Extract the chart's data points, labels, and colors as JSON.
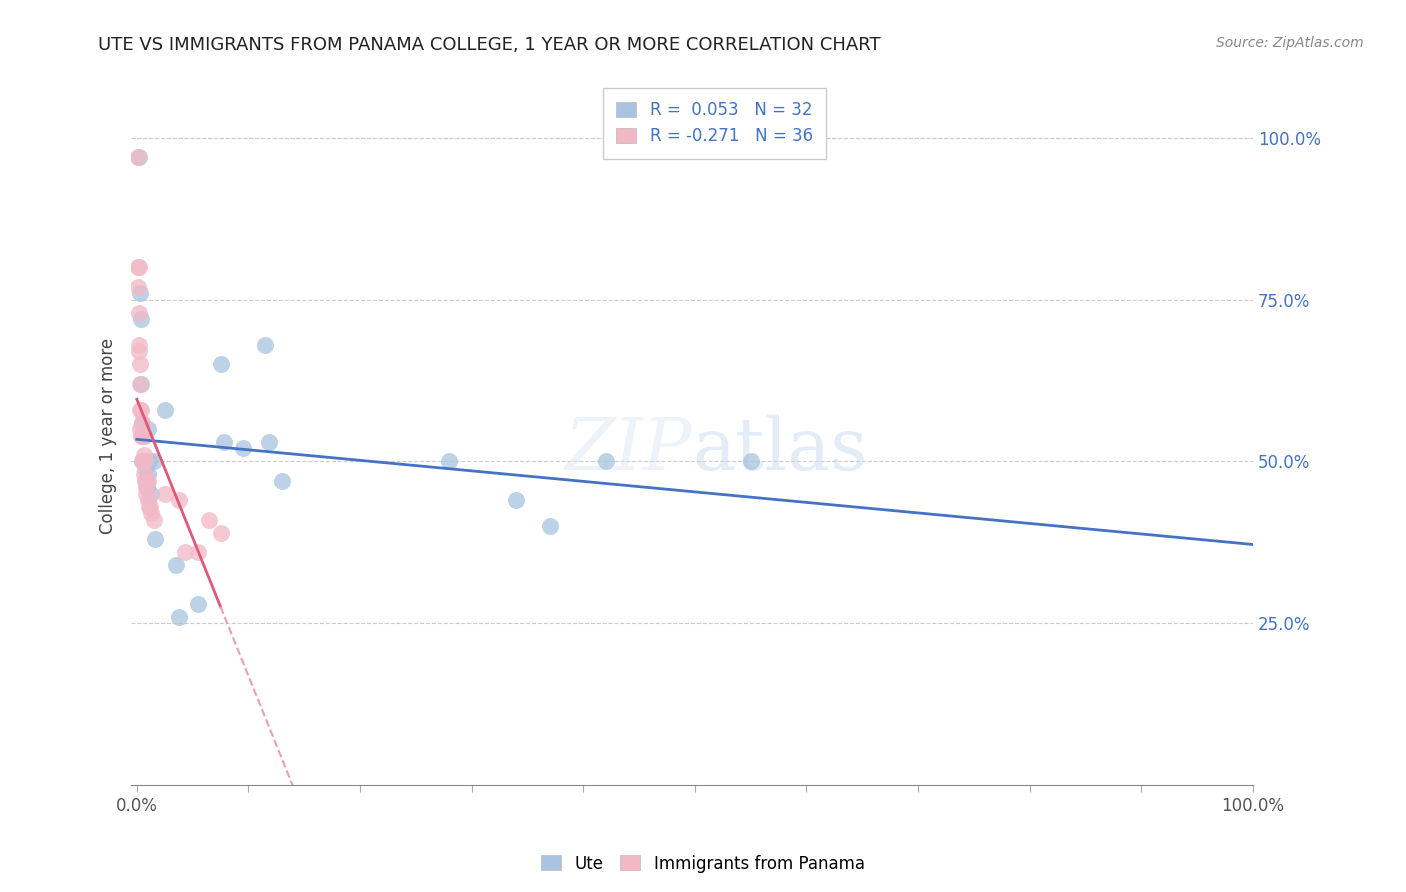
{
  "title": "UTE VS IMMIGRANTS FROM PANAMA COLLEGE, 1 YEAR OR MORE CORRELATION CHART",
  "source_text": "Source: ZipAtlas.com",
  "ylabel": "College, 1 year or more",
  "legend_labels": [
    "Ute",
    "Immigrants from Panama"
  ],
  "r_ute": 0.053,
  "n_ute": 32,
  "r_panama": -0.271,
  "n_panama": 36,
  "ytick_labels": [
    "25.0%",
    "50.0%",
    "75.0%",
    "100.0%"
  ],
  "ytick_values": [
    0.25,
    0.5,
    0.75,
    1.0
  ],
  "color_ute": "#a8c4e0",
  "color_panama": "#f2b8c6",
  "line_color_ute": "#4472c4",
  "line_color_panama": "#e05878",
  "dashed_line_color": "#e8a0b0",
  "ute_x": [
    0.002,
    0.003,
    0.004,
    0.004,
    0.005,
    0.005,
    0.006,
    0.006,
    0.007,
    0.008,
    0.009,
    0.01,
    0.01,
    0.011,
    0.013,
    0.015,
    0.016,
    0.025,
    0.035,
    0.038,
    0.055,
    0.075,
    0.078,
    0.095,
    0.115,
    0.118,
    0.13,
    0.28,
    0.34,
    0.37,
    0.42,
    0.55
  ],
  "ute_y": [
    0.97,
    0.76,
    0.72,
    0.62,
    0.56,
    0.5,
    0.54,
    0.5,
    0.49,
    0.47,
    0.46,
    0.55,
    0.48,
    0.5,
    0.45,
    0.5,
    0.38,
    0.58,
    0.34,
    0.26,
    0.28,
    0.65,
    0.53,
    0.52,
    0.68,
    0.53,
    0.47,
    0.5,
    0.44,
    0.4,
    0.5,
    0.5
  ],
  "panama_x": [
    0.001,
    0.001,
    0.001,
    0.002,
    0.002,
    0.002,
    0.002,
    0.003,
    0.003,
    0.003,
    0.003,
    0.004,
    0.004,
    0.005,
    0.005,
    0.005,
    0.006,
    0.006,
    0.006,
    0.007,
    0.007,
    0.008,
    0.008,
    0.009,
    0.01,
    0.01,
    0.011,
    0.012,
    0.013,
    0.015,
    0.025,
    0.038,
    0.043,
    0.055,
    0.065,
    0.075
  ],
  "panama_y": [
    0.97,
    0.8,
    0.77,
    0.8,
    0.73,
    0.68,
    0.67,
    0.65,
    0.62,
    0.58,
    0.55,
    0.58,
    0.54,
    0.56,
    0.54,
    0.5,
    0.54,
    0.51,
    0.48,
    0.5,
    0.47,
    0.46,
    0.45,
    0.47,
    0.47,
    0.44,
    0.43,
    0.43,
    0.42,
    0.41,
    0.45,
    0.44,
    0.36,
    0.36,
    0.41,
    0.39
  ]
}
